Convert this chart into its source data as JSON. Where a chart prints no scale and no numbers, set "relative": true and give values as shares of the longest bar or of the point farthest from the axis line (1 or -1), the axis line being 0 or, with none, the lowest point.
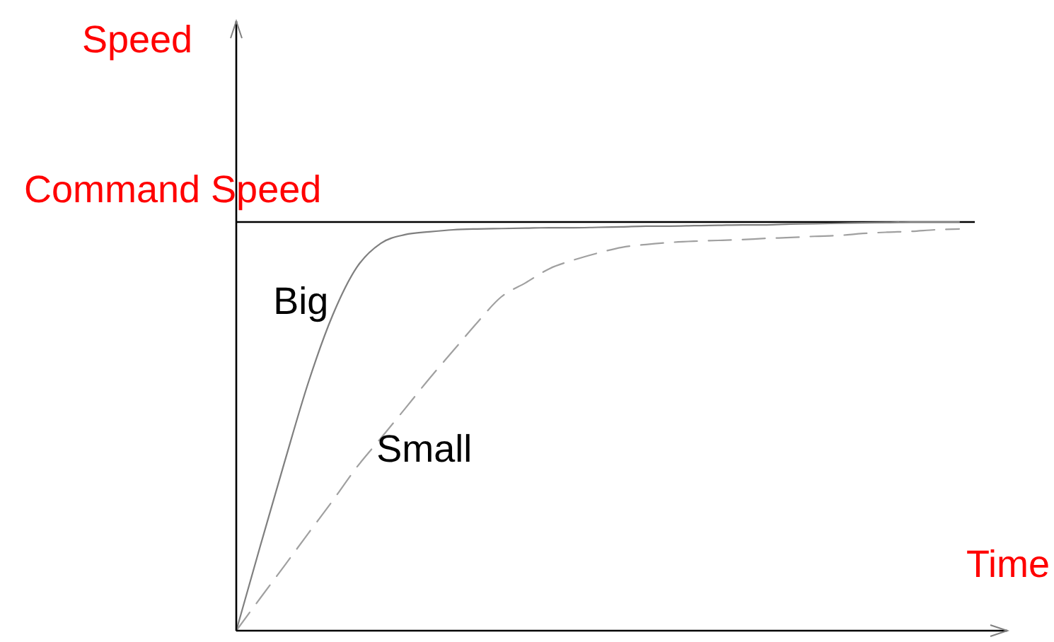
{
  "chart_data": {
    "type": "line",
    "relative": true,
    "xlabel": "Time",
    "ylabel": "Speed",
    "legend": false,
    "marker": "none",
    "categories": [
      null,
      null,
      null,
      null,
      null,
      null,
      null,
      null,
      null,
      null,
      null,
      null,
      null,
      null,
      null,
      null,
      null,
      null,
      null,
      null,
      null,
      null,
      null,
      null,
      null,
      null,
      null,
      null,
      null,
      null,
      null
    ],
    "series": [
      {
        "name": "Big",
        "color": "#7f7f7f",
        "line_style": "solid",
        "values": [
          0,
          0.208,
          0.412,
          0.609,
          0.772,
          0.889,
          0.948,
          0.969,
          0.976,
          0.981,
          0.983,
          0.984,
          0.985,
          0.986,
          0.986,
          0.987,
          0.988,
          0.99,
          0.99,
          0.991,
          0.992,
          0.993,
          0.993,
          0.995,
          0.996,
          0.997,
          0.998,
          0.999,
          1,
          1,
          1
        ]
      },
      {
        "name": "Small",
        "color": "#a0a0a0",
        "line_style": "dashed",
        "values": [
          0,
          0.08,
          0.159,
          0.239,
          0.318,
          0.4,
          0.471,
          0.543,
          0.616,
          0.685,
          0.754,
          0.817,
          0.851,
          0.886,
          0.907,
          0.924,
          0.938,
          0.945,
          0.95,
          0.953,
          0.955,
          0.957,
          0.96,
          0.962,
          0.965,
          0.967,
          0.972,
          0.975,
          0.977,
          0.981,
          0.983
        ]
      }
    ],
    "ref_lines": [
      {
        "axis": "y",
        "value": 1,
        "label": "Command Speed",
        "color": "#000000"
      }
    ]
  }
}
